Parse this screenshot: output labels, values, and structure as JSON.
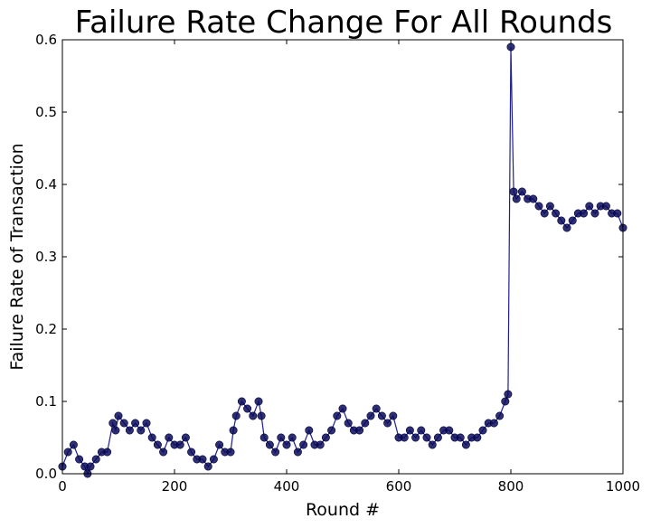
{
  "chart_data": {
    "type": "line",
    "title": "Failure Rate Change For All Rounds",
    "xlabel": "Round #",
    "ylabel": "Failure Rate of Transaction",
    "xlim": [
      0,
      1000
    ],
    "ylim": [
      0.0,
      0.6
    ],
    "x_ticks": [
      "0",
      "200",
      "400",
      "600",
      "800",
      "1000"
    ],
    "y_ticks": [
      "0.0",
      "0.1",
      "0.2",
      "0.3",
      "0.4",
      "0.5",
      "0.6"
    ],
    "grid": false,
    "marker": "circle",
    "line_color": "#1f1f8f",
    "marker_color": "#0b0b5c",
    "series": [
      {
        "x": [
          0,
          10,
          20,
          30,
          40,
          45,
          50,
          60,
          70,
          80,
          90,
          95,
          100,
          110,
          120,
          130,
          140,
          150,
          160,
          170,
          180,
          190,
          200,
          210,
          220,
          230,
          240,
          250,
          260,
          270,
          280,
          290,
          300,
          305,
          310,
          320,
          330,
          340,
          350,
          355,
          360,
          370,
          380,
          390,
          400,
          410,
          420,
          430,
          440,
          450,
          460,
          470,
          480,
          490,
          500,
          510,
          520,
          530,
          540,
          550,
          560,
          570,
          580,
          590,
          600,
          610,
          620,
          630,
          640,
          650,
          660,
          670,
          680,
          690,
          700,
          710,
          720,
          730,
          740,
          750,
          760,
          770,
          780,
          790,
          795,
          800,
          805,
          810,
          820,
          830,
          840,
          850,
          860,
          870,
          880,
          890,
          900,
          910,
          920,
          930,
          940,
          950,
          960,
          970,
          980,
          990,
          1000
        ],
        "y": [
          0.01,
          0.03,
          0.04,
          0.02,
          0.01,
          0.0,
          0.01,
          0.02,
          0.03,
          0.03,
          0.07,
          0.06,
          0.08,
          0.07,
          0.06,
          0.07,
          0.06,
          0.07,
          0.05,
          0.04,
          0.03,
          0.05,
          0.04,
          0.04,
          0.05,
          0.03,
          0.02,
          0.02,
          0.01,
          0.02,
          0.04,
          0.03,
          0.03,
          0.06,
          0.08,
          0.1,
          0.09,
          0.08,
          0.1,
          0.08,
          0.05,
          0.04,
          0.03,
          0.05,
          0.04,
          0.05,
          0.03,
          0.04,
          0.06,
          0.04,
          0.04,
          0.05,
          0.06,
          0.08,
          0.09,
          0.07,
          0.06,
          0.06,
          0.07,
          0.08,
          0.09,
          0.08,
          0.07,
          0.08,
          0.05,
          0.05,
          0.06,
          0.05,
          0.06,
          0.05,
          0.04,
          0.05,
          0.06,
          0.06,
          0.05,
          0.05,
          0.04,
          0.05,
          0.05,
          0.06,
          0.07,
          0.07,
          0.08,
          0.1,
          0.11,
          0.59,
          0.39,
          0.38,
          0.39,
          0.38,
          0.38,
          0.37,
          0.36,
          0.37,
          0.36,
          0.35,
          0.34,
          0.35,
          0.36,
          0.36,
          0.37,
          0.36,
          0.37,
          0.37,
          0.36,
          0.36,
          0.34
        ]
      }
    ]
  }
}
